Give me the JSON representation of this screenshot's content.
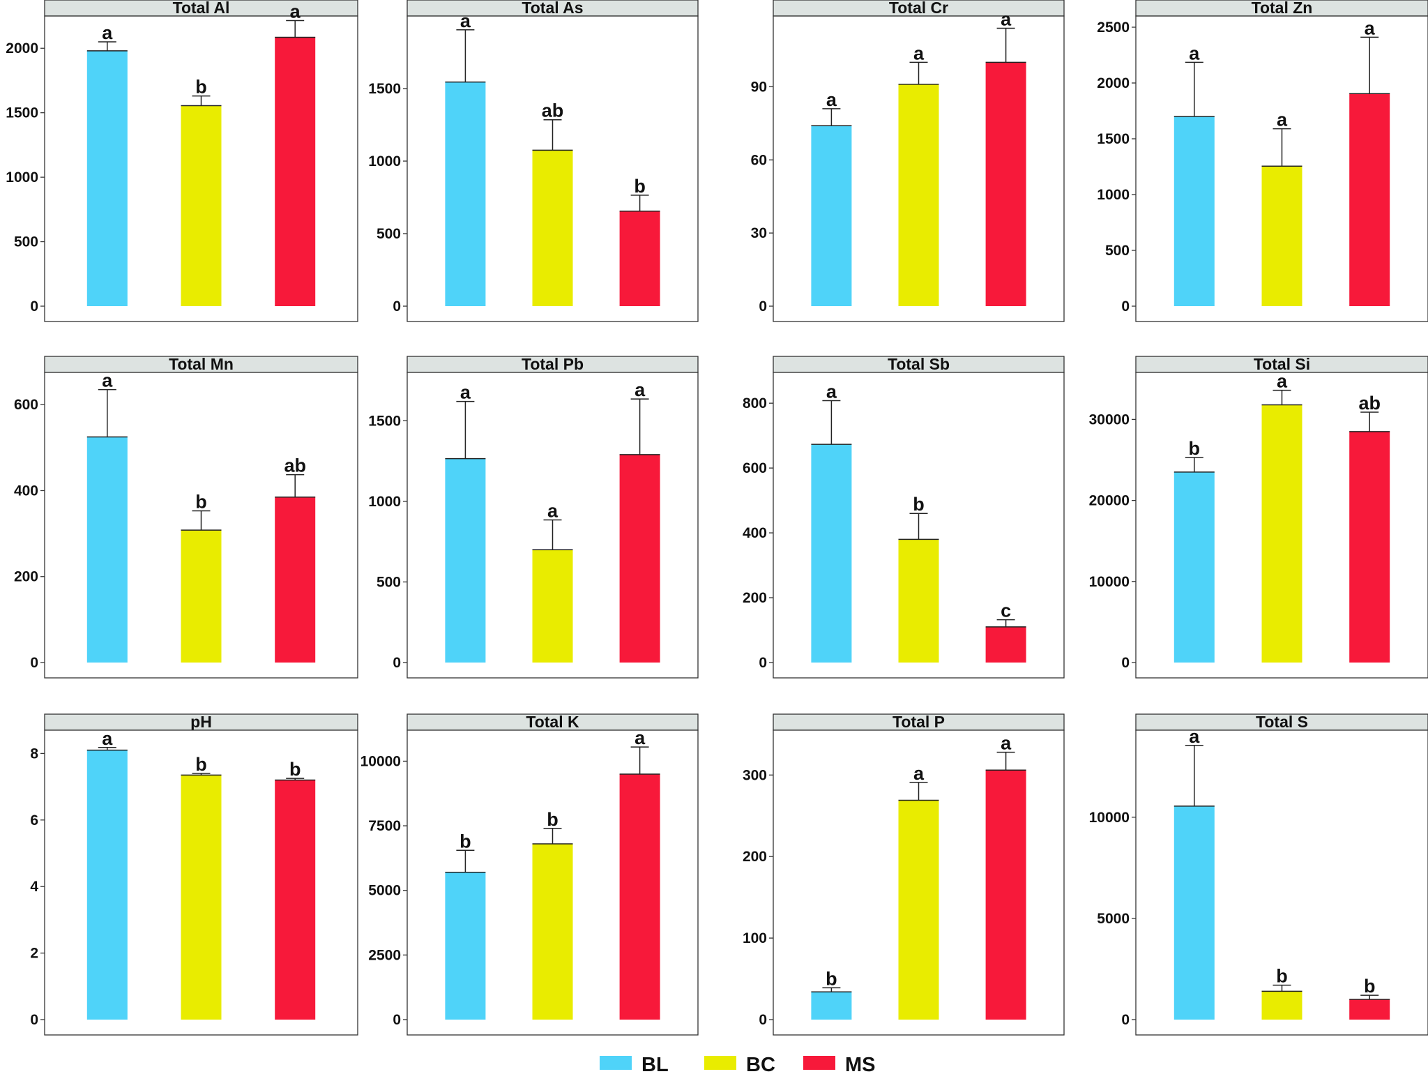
{
  "legend": [
    {
      "label": "BL",
      "color": "#4fd3f9"
    },
    {
      "label": "BC",
      "color": "#e9ec00"
    },
    {
      "label": "MS",
      "color": "#f7193a"
    }
  ],
  "chart_data": [
    {
      "type": "bar",
      "title": "Total Al",
      "categories": [
        "BL",
        "BC",
        "MS"
      ],
      "values": [
        1980,
        1555,
        2085
      ],
      "errors": [
        70,
        75,
        130
      ],
      "letters": [
        "a",
        "b",
        "a"
      ],
      "ylim": [
        0,
        2250
      ],
      "yticks": [
        0,
        500,
        1000,
        1500,
        2000
      ]
    },
    {
      "type": "bar",
      "title": "Total As",
      "categories": [
        "BL",
        "BC",
        "MS"
      ],
      "values": [
        1545,
        1075,
        655
      ],
      "errors": [
        360,
        210,
        110
      ],
      "letters": [
        "a",
        "ab",
        "b"
      ],
      "ylim": [
        0,
        2000
      ],
      "yticks": [
        0,
        500,
        1000,
        1500
      ]
    },
    {
      "type": "bar",
      "title": "Total Cr",
      "categories": [
        "BL",
        "BC",
        "MS"
      ],
      "values": [
        74,
        91,
        100
      ],
      "errors": [
        7,
        9,
        14
      ],
      "letters": [
        "a",
        "a",
        "a"
      ],
      "ylim": [
        0,
        119
      ],
      "yticks": [
        0,
        30,
        60,
        90
      ]
    },
    {
      "type": "bar",
      "title": "Total Zn",
      "categories": [
        "BL",
        "BC",
        "MS"
      ],
      "values": [
        1700,
        1255,
        1905
      ],
      "errors": [
        485,
        335,
        505
      ],
      "letters": [
        "a",
        "a",
        "a"
      ],
      "ylim": [
        0,
        2600
      ],
      "yticks": [
        0,
        500,
        1000,
        1500,
        2000,
        2500
      ]
    },
    {
      "type": "bar",
      "title": "Total Mn",
      "categories": [
        "BL",
        "BC",
        "MS"
      ],
      "values": [
        525,
        308,
        385
      ],
      "errors": [
        110,
        45,
        52
      ],
      "letters": [
        "a",
        "b",
        "ab"
      ],
      "ylim": [
        0,
        675
      ],
      "yticks": [
        0,
        200,
        400,
        600
      ]
    },
    {
      "type": "bar",
      "title": "Total Pb",
      "categories": [
        "BL",
        "BC",
        "MS"
      ],
      "values": [
        1265,
        700,
        1290
      ],
      "errors": [
        355,
        185,
        345
      ],
      "letters": [
        "a",
        "a",
        "a"
      ],
      "ylim": [
        0,
        1800
      ],
      "yticks": [
        0,
        500,
        1000,
        1500
      ]
    },
    {
      "type": "bar",
      "title": "Total Sb",
      "categories": [
        "BL",
        "BC",
        "MS"
      ],
      "values": [
        673,
        380,
        110
      ],
      "errors": [
        135,
        80,
        22
      ],
      "letters": [
        "a",
        "b",
        "c"
      ],
      "ylim": [
        0,
        895
      ],
      "yticks": [
        0,
        200,
        400,
        600,
        800
      ]
    },
    {
      "type": "bar",
      "title": "Total Si",
      "categories": [
        "BL",
        "BC",
        "MS"
      ],
      "values": [
        23500,
        31800,
        28500
      ],
      "errors": [
        1800,
        1800,
        2400
      ],
      "letters": [
        "b",
        "a",
        "ab"
      ],
      "ylim": [
        0,
        35800
      ],
      "yticks": [
        0,
        10000,
        20000,
        30000
      ]
    },
    {
      "type": "bar",
      "title": "pH",
      "categories": [
        "BL",
        "BC",
        "MS"
      ],
      "values": [
        8.1,
        7.35,
        7.2
      ],
      "errors": [
        0.08,
        0.05,
        0.05
      ],
      "letters": [
        "a",
        "b",
        "b"
      ],
      "ylim": [
        0,
        8.7
      ],
      "yticks": [
        0,
        2,
        4,
        6,
        8
      ]
    },
    {
      "type": "bar",
      "title": "Total K",
      "categories": [
        "BL",
        "BC",
        "MS"
      ],
      "values": [
        5700,
        6800,
        9500
      ],
      "errors": [
        850,
        600,
        1050
      ],
      "letters": [
        "b",
        "b",
        "a"
      ],
      "ylim": [
        0,
        11200
      ],
      "yticks": [
        0,
        2500,
        5000,
        7500,
        10000
      ]
    },
    {
      "type": "bar",
      "title": "Total P",
      "categories": [
        "BL",
        "BC",
        "MS"
      ],
      "values": [
        34,
        269,
        306
      ],
      "errors": [
        5,
        22,
        22
      ],
      "letters": [
        "b",
        "a",
        "a"
      ],
      "ylim": [
        0,
        355
      ],
      "yticks": [
        0,
        100,
        200,
        300
      ]
    },
    {
      "type": "bar",
      "title": "Total S",
      "categories": [
        "BL",
        "BC",
        "MS"
      ],
      "values": [
        10550,
        1400,
        1000
      ],
      "errors": [
        3000,
        300,
        200
      ],
      "letters": [
        "a",
        "b",
        "b"
      ],
      "ylim": [
        0,
        14300
      ],
      "yticks": [
        0,
        5000,
        10000
      ]
    }
  ]
}
